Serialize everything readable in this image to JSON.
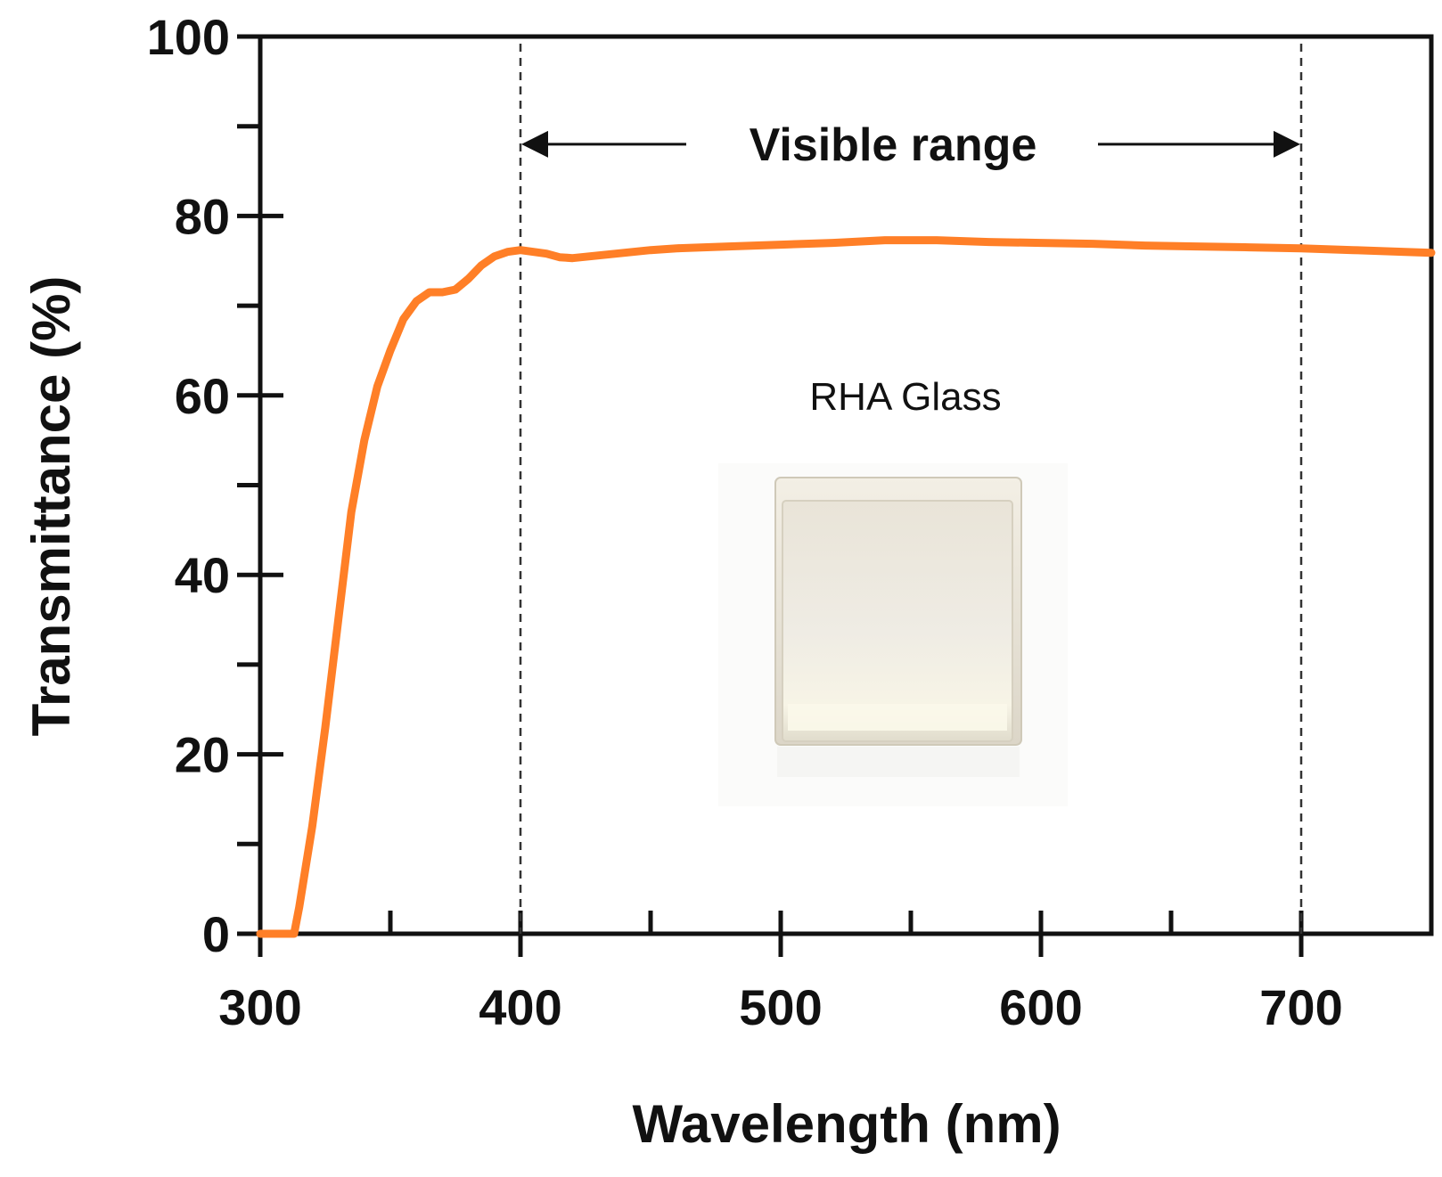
{
  "chart_data": {
    "type": "line",
    "title": "",
    "xlabel": "Wavelength (nm)",
    "ylabel": "Transmittance (%)",
    "xlim": [
      300,
      750
    ],
    "ylim": [
      0,
      100
    ],
    "x_major_ticks": [
      300,
      400,
      500,
      600,
      700
    ],
    "x_minor_ticks": [
      350,
      450,
      550,
      650,
      750
    ],
    "y_major_ticks": [
      0,
      20,
      40,
      60,
      80,
      100
    ],
    "y_minor_ticks": [
      10,
      30,
      50,
      70,
      90
    ],
    "x_tick_labels": [
      "300",
      "400",
      "500",
      "600",
      "700"
    ],
    "y_tick_labels": [
      "0",
      "20",
      "40",
      "60",
      "80",
      "100"
    ],
    "grid": false,
    "series": [
      {
        "name": "RHA Glass",
        "color": "#ff7f27",
        "x": [
          300,
          313,
          315,
          320,
          325,
          330,
          335,
          340,
          345,
          350,
          355,
          360,
          365,
          370,
          375,
          380,
          385,
          390,
          395,
          400,
          405,
          410,
          415,
          420,
          430,
          440,
          450,
          460,
          480,
          500,
          520,
          540,
          560,
          580,
          600,
          620,
          640,
          660,
          680,
          700,
          720,
          740,
          750
        ],
        "values": [
          0,
          0,
          3,
          12,
          23,
          35,
          47,
          55,
          61,
          65,
          68.5,
          70.5,
          71.5,
          71.5,
          71.8,
          73.0,
          74.5,
          75.5,
          76.0,
          76.2,
          76.0,
          75.8,
          75.4,
          75.3,
          75.6,
          75.9,
          76.2,
          76.4,
          76.6,
          76.8,
          77.0,
          77.3,
          77.3,
          77.1,
          77.0,
          76.9,
          76.7,
          76.6,
          76.5,
          76.4,
          76.2,
          76.0,
          75.9
        ]
      }
    ],
    "reference_lines": [
      {
        "x": 400,
        "style": "dashed"
      },
      {
        "x": 700,
        "style": "dashed"
      }
    ],
    "annotations": [
      {
        "text": "Visible range",
        "from_x": 400,
        "to_x": 700,
        "y": 88
      },
      {
        "text": "RHA Glass",
        "x": 550,
        "y": 60
      }
    ],
    "inset_image": {
      "description_name": "glass-sample-photo",
      "label": "RHA Glass"
    }
  },
  "colors": {
    "curve": "#ff7f27",
    "axis": "#111111",
    "reference": "#333333"
  }
}
